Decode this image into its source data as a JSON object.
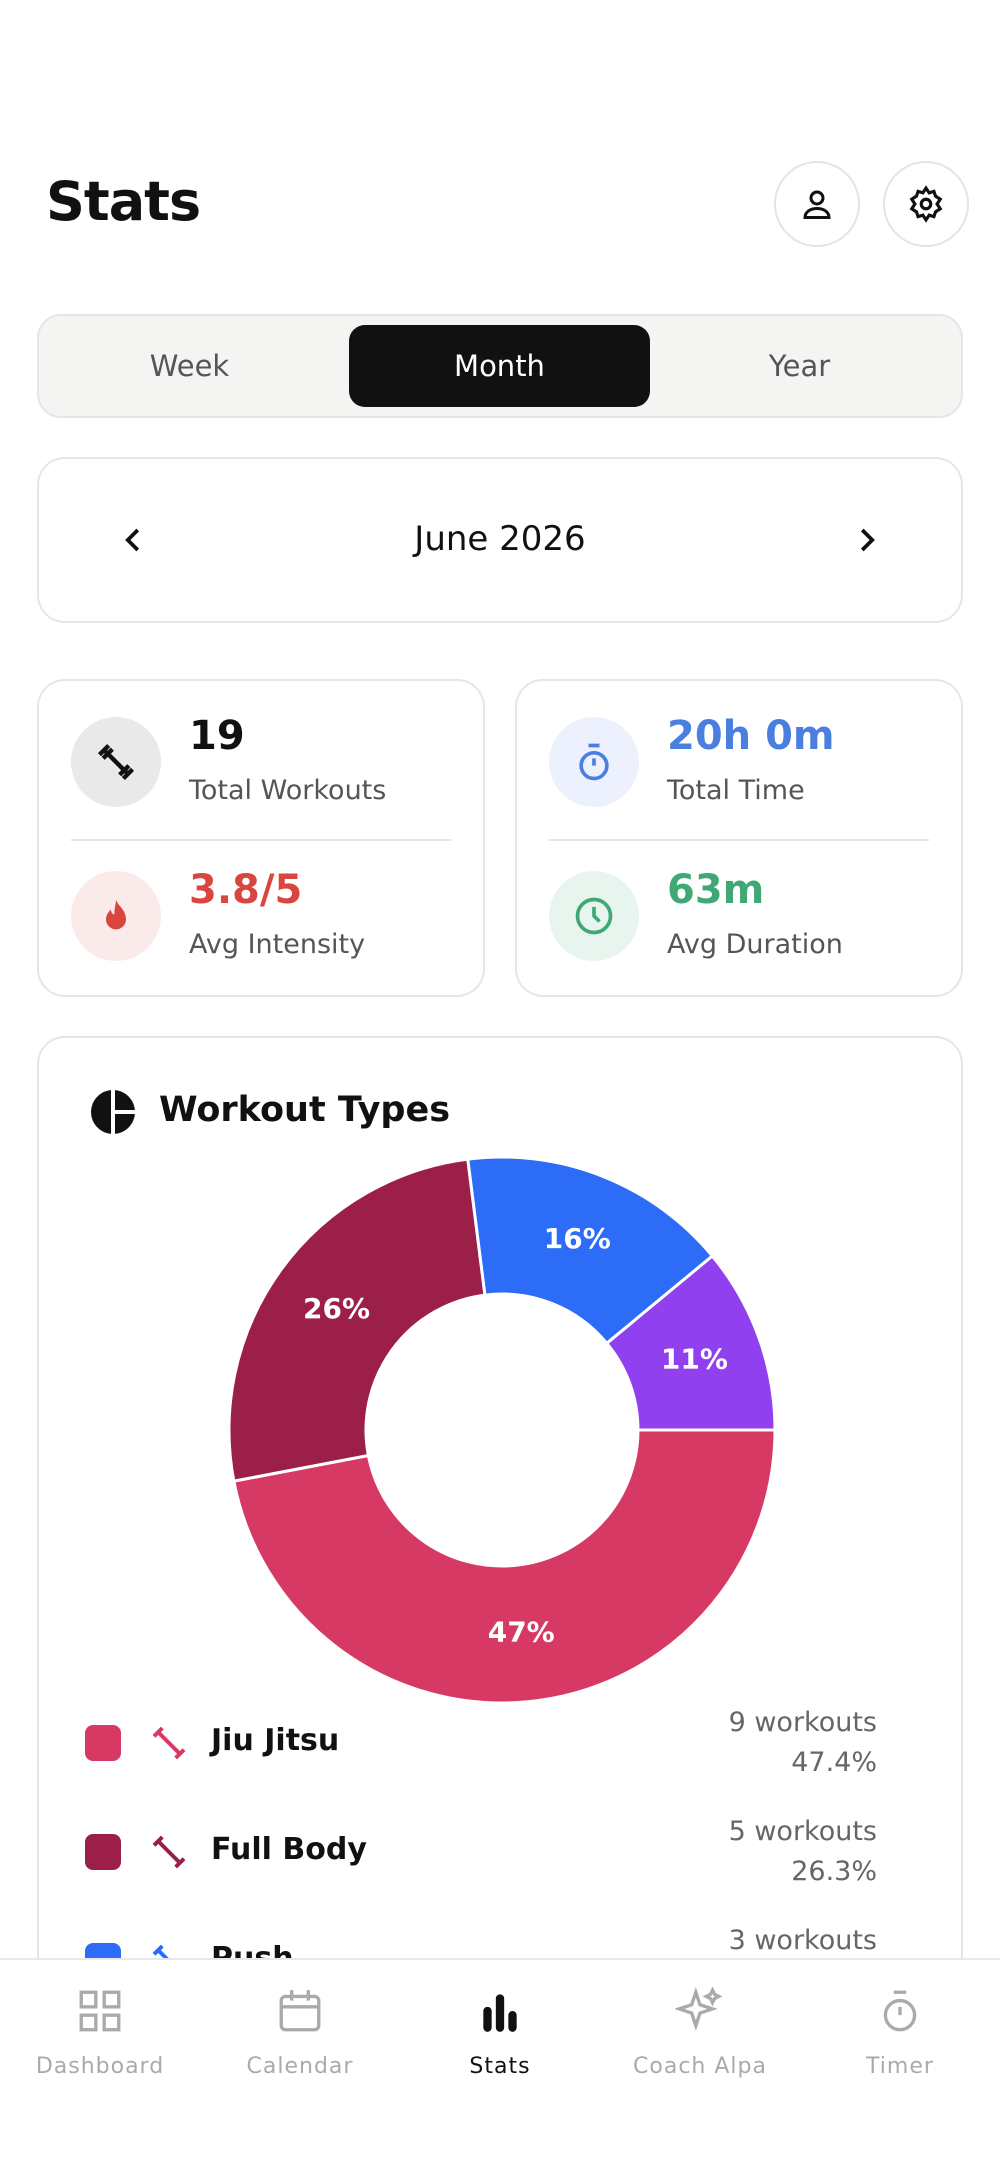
{
  "header": {
    "title": "Stats"
  },
  "period_tabs": [
    "Week",
    "Month",
    "Year"
  ],
  "selected_tab": 1,
  "period": "June 2026",
  "stats": [
    {
      "value": "19",
      "label": "Total Workouts",
      "color": "#111111"
    },
    {
      "value": "20h 0m",
      "label": "Total Time",
      "color": "#4a7fe0"
    },
    {
      "value": "3.8/5",
      "label": "Avg Intensity",
      "color": "#d9463f"
    },
    {
      "value": "63m",
      "label": "Avg Duration",
      "color": "#3fa874"
    }
  ],
  "workout_types": {
    "title": "Workout Types",
    "chart": {
      "type": "pie",
      "donut": true,
      "values": [
        47,
        26,
        16,
        11
      ],
      "value_labels": [
        "47%",
        "26%",
        "16%",
        "11%"
      ],
      "colors": [
        "#d63a64",
        "#9b1f48",
        "#2d6cf6",
        "#9140f0"
      ]
    },
    "legend": [
      {
        "name": "Jiu Jitsu",
        "count": "9 workouts",
        "percent": "47.4%"
      },
      {
        "name": "Full Body",
        "count": "5 workouts",
        "percent": "26.3%"
      },
      {
        "name": "Push",
        "count": "3 workouts"
      }
    ]
  },
  "nav": [
    "Dashboard",
    "Calendar",
    "Stats",
    "Coach Alpa",
    "Timer"
  ],
  "nav_active": 2
}
